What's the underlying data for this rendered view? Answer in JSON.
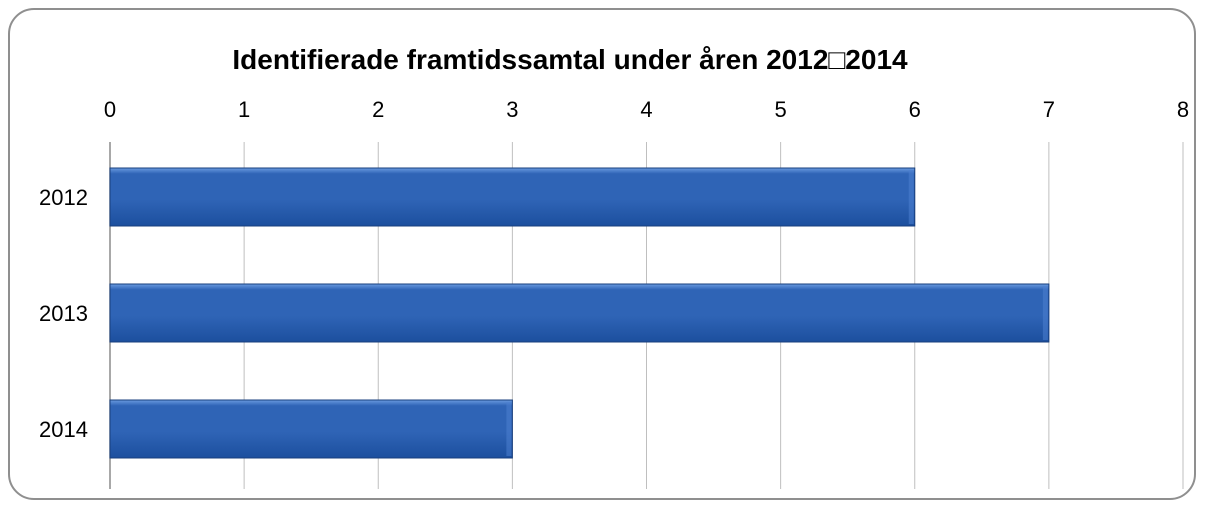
{
  "chart_data": {
    "type": "bar",
    "orientation": "horizontal",
    "title": "Identifierade framtidssamtal under åren 2012□2014",
    "categories": [
      "2012",
      "2013",
      "2014"
    ],
    "values": [
      6,
      7,
      3
    ],
    "xlim": [
      0,
      8
    ],
    "x_ticks": [
      "0",
      "1",
      "2",
      "3",
      "4",
      "5",
      "6",
      "7",
      "8"
    ],
    "x_axis_position": "top",
    "grid": true,
    "legend": "none",
    "colors": {
      "bar_top": "#6a9be0",
      "bar_mid": "#2f64b6",
      "bar_bottom": "#1c4f9e",
      "bar_edge": "#183f7e",
      "grid": "#bfbfbf",
      "axis": "#8c8c8c"
    }
  }
}
